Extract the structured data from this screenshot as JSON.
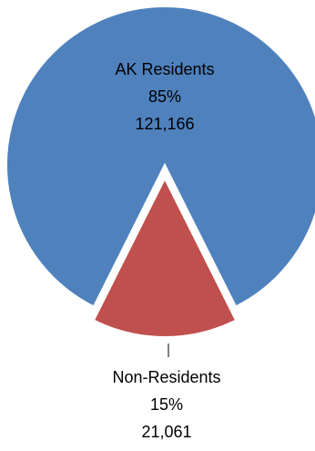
{
  "chart_data": {
    "type": "pie",
    "title": "",
    "slices": [
      {
        "name": "AK Residents",
        "percent": "85%",
        "count": "121,166",
        "value": 121166,
        "color": "#4f81bd",
        "exploded": false
      },
      {
        "name": "Non-Residents",
        "percent": "15%",
        "count": "21,061",
        "value": 21061,
        "color": "#c0504d",
        "exploded": true
      }
    ],
    "legend": "none",
    "data_labels": "category, percentage, value"
  }
}
